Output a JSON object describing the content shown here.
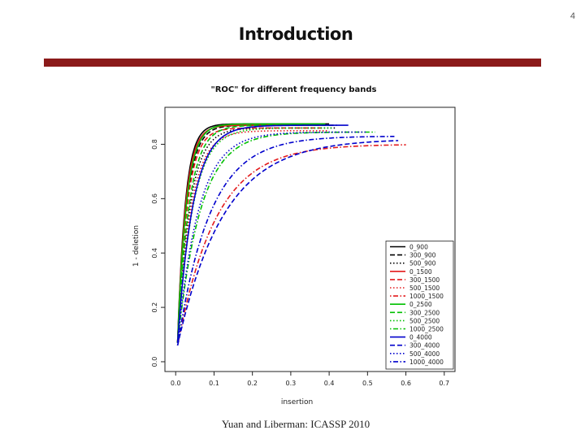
{
  "page_number": "4",
  "title": "Introduction",
  "footer": "Yuan and Liberman: ICASSP 2010",
  "chart_data": {
    "type": "line",
    "title": "\"ROC\" for different frequency bands",
    "xlabel": "insertion",
    "ylabel": "1 - deletion",
    "xlim": [
      0.0,
      0.7
    ],
    "ylim": [
      0.0,
      0.9
    ],
    "x_ticks": [
      "0.0",
      "0.1",
      "0.2",
      "0.3",
      "0.4",
      "0.5",
      "0.6",
      "0.7"
    ],
    "y_ticks": [
      "0.0",
      "0.2",
      "0.4",
      "0.6",
      "0.8"
    ],
    "legend_position": "bottom-right",
    "series": [
      {
        "name": "0_900",
        "color": "#000000",
        "dash": "solid",
        "start": 0.07,
        "plateau": 0.875,
        "knee": 0.02,
        "xmax": 0.4
      },
      {
        "name": "300_900",
        "color": "#000000",
        "dash": "dashed",
        "start": 0.07,
        "plateau": 0.87,
        "knee": 0.024,
        "xmax": 0.42
      },
      {
        "name": "500_900",
        "color": "#000000",
        "dash": "dotted",
        "start": 0.07,
        "plateau": 0.86,
        "knee": 0.032,
        "xmax": 0.42
      },
      {
        "name": "0_1500",
        "color": "#e31a1c",
        "dash": "solid",
        "start": 0.07,
        "plateau": 0.87,
        "knee": 0.021,
        "xmax": 0.38
      },
      {
        "name": "300_1500",
        "color": "#e31a1c",
        "dash": "dashed",
        "start": 0.07,
        "plateau": 0.86,
        "knee": 0.025,
        "xmax": 0.38
      },
      {
        "name": "500_1500",
        "color": "#e31a1c",
        "dash": "dotted",
        "start": 0.07,
        "plateau": 0.85,
        "knee": 0.035,
        "xmax": 0.4
      },
      {
        "name": "1000_1500",
        "color": "#e31a1c",
        "dash": "dotdash",
        "start": 0.06,
        "plateau": 0.8,
        "knee": 0.1,
        "xmax": 0.6
      },
      {
        "name": "0_2500",
        "color": "#00c000",
        "dash": "solid",
        "start": 0.07,
        "plateau": 0.875,
        "knee": 0.023,
        "xmax": 0.39
      },
      {
        "name": "300_2500",
        "color": "#00c000",
        "dash": "dashed",
        "start": 0.07,
        "plateau": 0.87,
        "knee": 0.03,
        "xmax": 0.4
      },
      {
        "name": "500_2500",
        "color": "#00c000",
        "dash": "dotted",
        "start": 0.07,
        "plateau": 0.86,
        "knee": 0.04,
        "xmax": 0.41
      },
      {
        "name": "1000_2500",
        "color": "#00c000",
        "dash": "dotdash",
        "start": 0.07,
        "plateau": 0.845,
        "knee": 0.06,
        "xmax": 0.52
      },
      {
        "name": "0_4000",
        "color": "#0000cc",
        "dash": "solid",
        "start": 0.07,
        "plateau": 0.87,
        "knee": 0.04,
        "xmax": 0.45
      },
      {
        "name": "300_4000",
        "color": "#0000cc",
        "dash": "dashed",
        "start": 0.06,
        "plateau": 0.82,
        "knee": 0.12,
        "xmax": 0.58
      },
      {
        "name": "500_4000",
        "color": "#0000cc",
        "dash": "dotted",
        "start": 0.07,
        "plateau": 0.845,
        "knee": 0.055,
        "xmax": 0.5
      },
      {
        "name": "1000_4000",
        "color": "#0000cc",
        "dash": "dotdash",
        "start": 0.06,
        "plateau": 0.83,
        "knee": 0.085,
        "xmax": 0.57
      }
    ]
  }
}
